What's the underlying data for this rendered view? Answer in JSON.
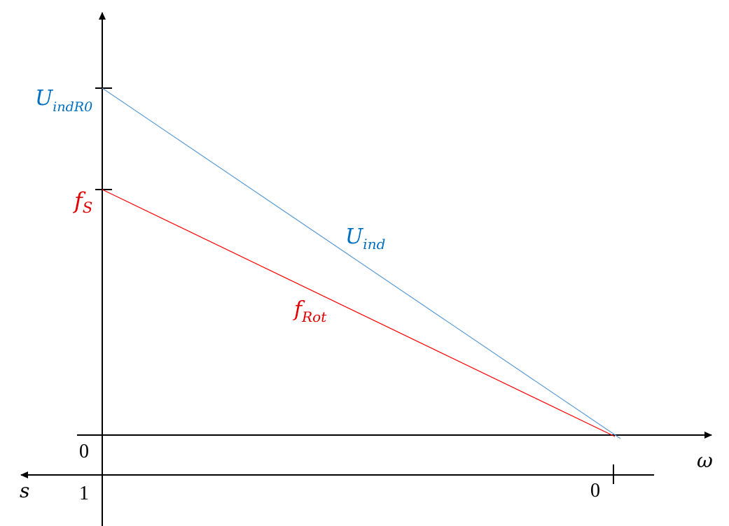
{
  "colors": {
    "axis": "#000000",
    "u_ind": "#5B9BD5",
    "u_ind_text": "#0070C0",
    "f_rot": "#FF0000",
    "f_rot_text": "#E00000"
  },
  "diagram": {
    "y_tick_u": {
      "base": "U",
      "sub": "indR0"
    },
    "y_tick_f": {
      "base": "f",
      "sub": "S"
    },
    "line_u": {
      "base": "U",
      "sub": "ind"
    },
    "line_f": {
      "base": "f",
      "sub": "Rot"
    },
    "omega_axis_label": "ω",
    "slip_axis_label": "s",
    "origin_omega_label": "0",
    "slip_one_label": "1",
    "slip_zero_label": "0"
  }
}
